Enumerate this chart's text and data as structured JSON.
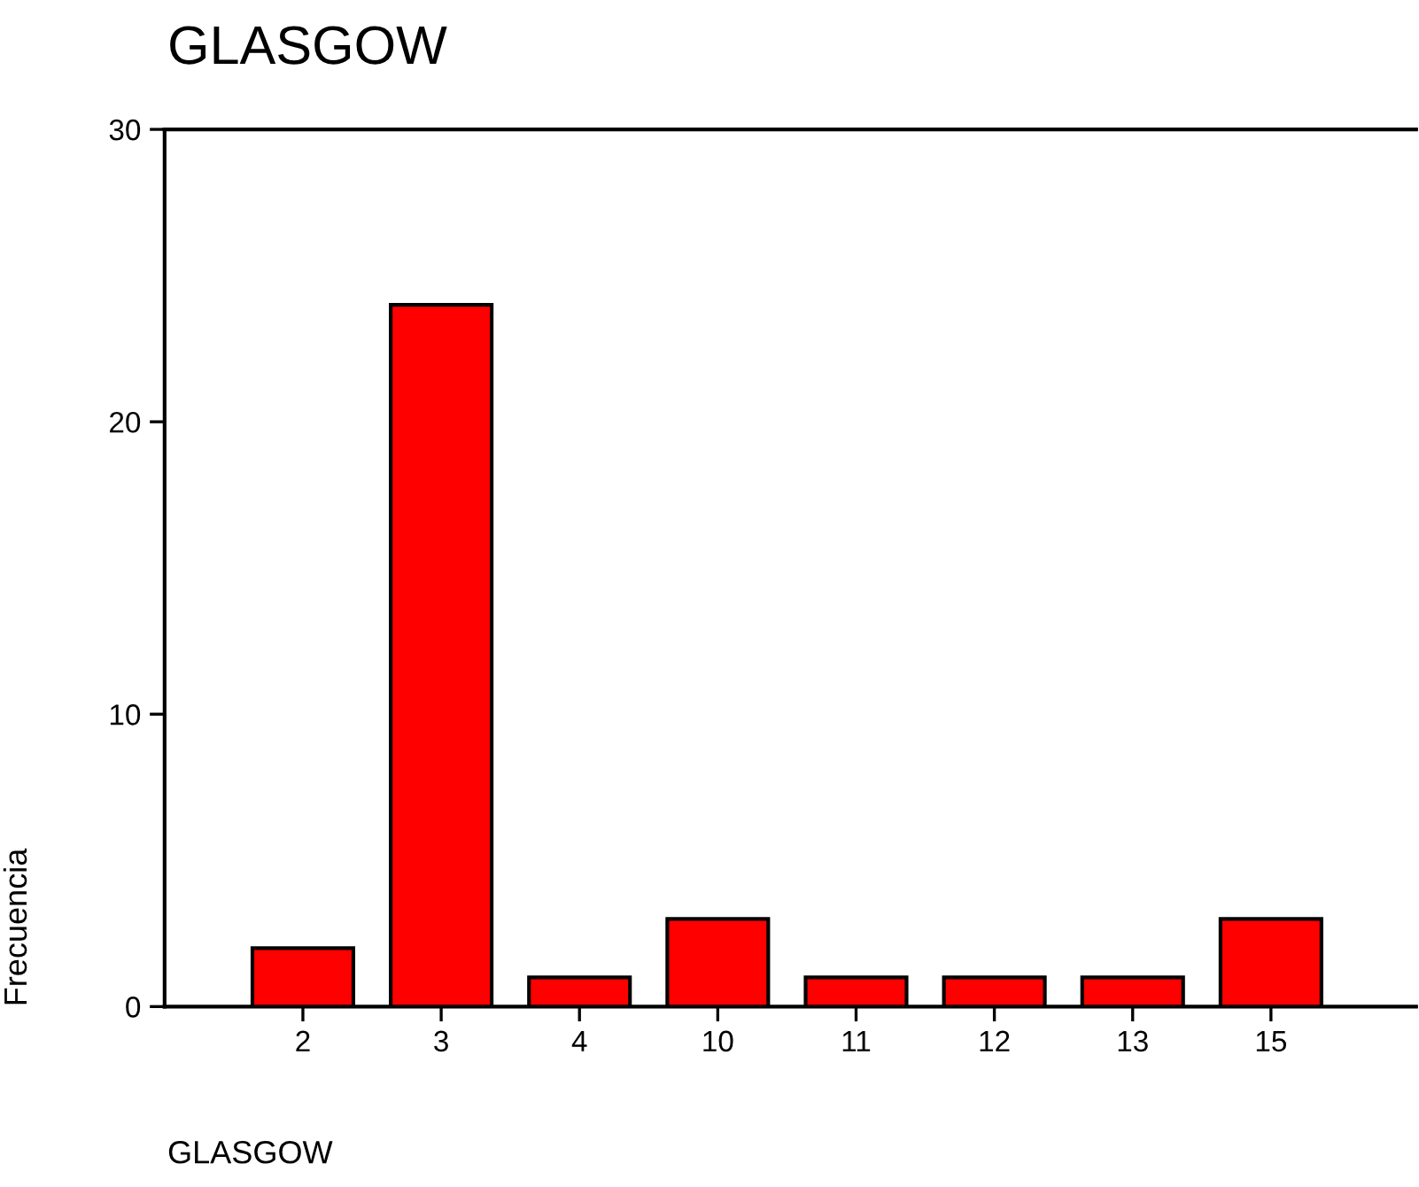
{
  "chart_data": {
    "type": "bar",
    "title": "GLASGOW",
    "xlabel": "GLASGOW",
    "ylabel": "Frecuencia",
    "categories": [
      "2",
      "3",
      "4",
      "10",
      "11",
      "12",
      "13",
      "15"
    ],
    "values": [
      2,
      24,
      1,
      3,
      1,
      1,
      1,
      3
    ],
    "color": "#ff0000",
    "ylim": [
      0,
      30
    ],
    "yticks": [
      0,
      10,
      20,
      30
    ],
    "grid": false,
    "legend": false
  }
}
